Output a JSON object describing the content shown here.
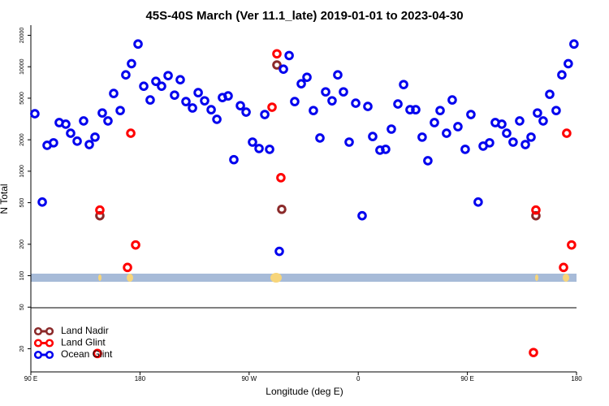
{
  "chart_data": {
    "type": "scatter",
    "title": "45S-40S March (Ver 11.1_late)   2019-01-01 to 2023-04-30",
    "x_label": "Longitude (deg E)",
    "y_label": "N Total",
    "log_y": true,
    "xlim": [
      90,
      540
    ],
    "xticks": [
      {
        "value": 90,
        "label": "90 E"
      },
      180,
      {
        "value": 270,
        "label": "90 W"
      },
      {
        "value": 360,
        "label": "0"
      },
      {
        "value": 450,
        "label": "90 E"
      },
      {
        "value": 540,
        "label": "180"
      }
    ],
    "ylim": [
      12,
      25000
    ],
    "yticks": [
      20,
      50,
      100,
      200,
      500,
      1000,
      2000,
      5000,
      10000,
      20000
    ],
    "legend": "bottom-left",
    "series": [
      {
        "name": "Land Nadir",
        "color": "#8b2a2a",
        "x": [
          146.9,
          292.9,
          296.9,
          506.5
        ],
        "values": [
          375,
          10400,
          432,
          375
        ]
      },
      {
        "name": "Land Glint",
        "color": "#ff0000",
        "x": [
          144.9,
          146.9,
          169.7,
          172.4,
          176.4,
          288.9,
          292.9,
          296.2,
          504.5,
          506.5,
          529.3,
          531.9,
          535.9
        ],
        "values": [
          18.0,
          425,
          120,
          2310,
          197,
          4100,
          13300,
          867,
          18.4,
          425,
          120,
          2310,
          197
        ]
      },
      {
        "name": "Ocean Glint",
        "color": "#0000ee",
        "x": [
          93.3,
          99.4,
          103.4,
          108.7,
          113.4,
          118.8,
          122.8,
          128.2,
          133.5,
          138.2,
          142.9,
          148.9,
          153.6,
          158.3,
          163.7,
          168.3,
          173,
          178.4,
          183.1,
          188.4,
          193.1,
          197.8,
          203.2,
          208.5,
          213.2,
          217.9,
          223.3,
          228,
          233.3,
          238.7,
          243.4,
          248,
          252.7,
          257.4,
          262.8,
          267.5,
          272.8,
          278.2,
          282.9,
          286.9,
          294.9,
          298.3,
          303,
          307.6,
          313,
          317.7,
          323,
          328.4,
          333.1,
          338.4,
          343.1,
          347.8,
          352.5,
          357.9,
          363.2,
          367.9,
          371.9,
          377.9,
          382.6,
          387.3,
          392.7,
          397.4,
          402.7,
          407.4,
          412.7,
          417.4,
          422.8,
          427.5,
          432.8,
          437.5,
          442.2,
          448.2,
          452.9,
          458.9,
          463,
          468.3,
          473,
          478.4,
          482.4,
          487.7,
          493.1,
          497.8,
          502.5,
          507.8,
          512.5,
          517.9,
          523.2,
          527.9,
          533.2,
          537.9
        ],
        "values": [
          3550,
          507,
          1770,
          1870,
          2920,
          2820,
          2310,
          1940,
          3030,
          1800,
          2120,
          3610,
          3030,
          5550,
          3810,
          8360,
          10700,
          16500,
          6510,
          4810,
          7250,
          6510,
          8220,
          5350,
          7510,
          4640,
          4030,
          5650,
          4720,
          3880,
          3140,
          5070,
          5260,
          1290,
          4240,
          3680,
          1900,
          1650,
          3490,
          1620,
          171,
          9480,
          12800,
          4640,
          6870,
          7930,
          3810,
          2080,
          5750,
          4720,
          8360,
          5750,
          1900,
          4480,
          375,
          4170,
          2150,
          1590,
          1620,
          2530,
          4400,
          6750,
          3880,
          3880,
          2120,
          1260,
          2920,
          3810,
          2310,
          4810,
          2670,
          1620,
          3490,
          507,
          1740,
          1870,
          2920,
          2820,
          2310,
          1900,
          3030,
          1800,
          2120,
          3610,
          3030,
          5450,
          3810,
          8360,
          10700,
          16500
        ]
      }
    ]
  }
}
